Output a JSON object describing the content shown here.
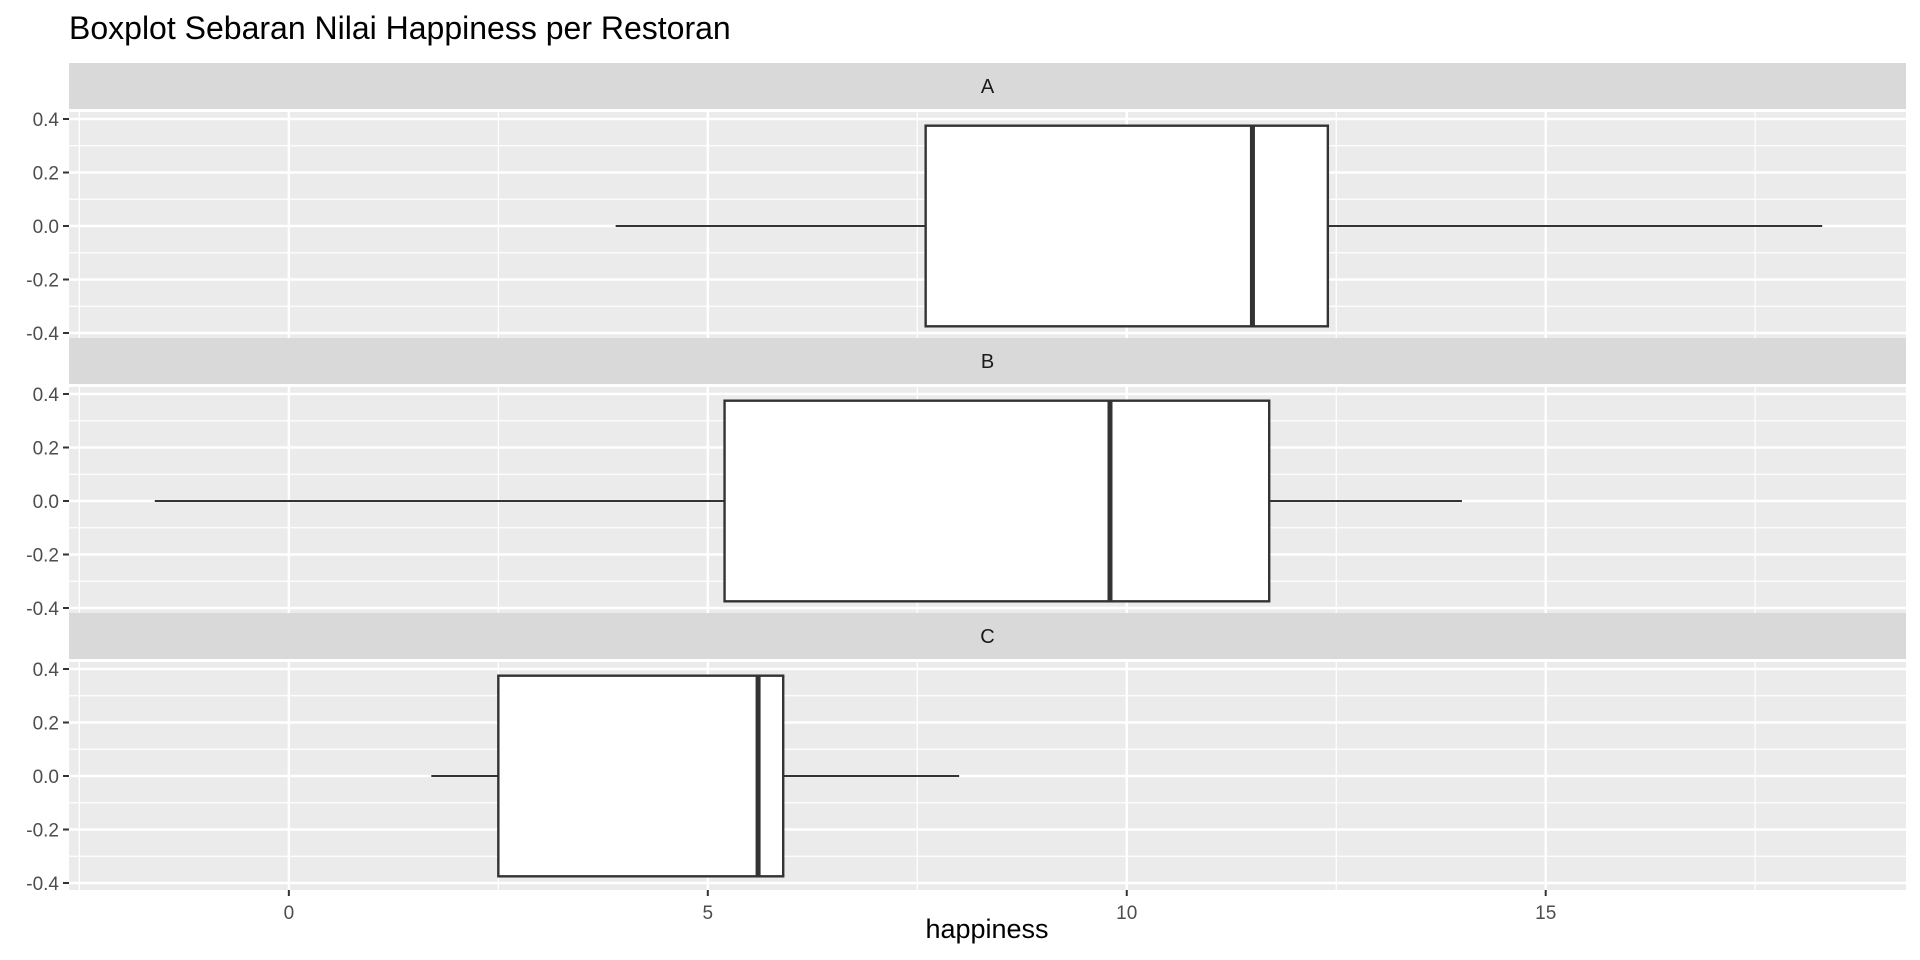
{
  "chart_data": {
    "type": "boxplot",
    "title": "Boxplot Sebaran Nilai Happiness per Restoran",
    "xlabel": "happiness",
    "ylabel": "",
    "xlim": [
      -2.6,
      19.3
    ],
    "ylim": [
      -0.4,
      0.4
    ],
    "x_ticks": [
      0,
      5,
      10,
      15
    ],
    "x_tick_labels": [
      "0",
      "5",
      "10",
      "15"
    ],
    "x_minor_ticks": [
      -2.5,
      2.5,
      7.5,
      12.5,
      17.5
    ],
    "y_ticks": [
      0.4,
      0.2,
      0.0,
      -0.2,
      -0.4
    ],
    "y_tick_labels": [
      "0.4",
      "0.2",
      "0.0",
      "-0.2",
      "-0.4"
    ],
    "grid": true,
    "legend": "none",
    "colors": {
      "panel_background": "#ebebeb",
      "strip_background": "#d9d9d9",
      "grid": "#ffffff",
      "box_fill": "#ffffff",
      "box_line": "#333333"
    },
    "facets": [
      {
        "label": "A",
        "whisker_low": 3.9,
        "q1": 7.6,
        "median": 11.5,
        "q3": 12.4,
        "whisker_high": 18.3
      },
      {
        "label": "B",
        "whisker_low": -1.6,
        "q1": 5.2,
        "median": 9.8,
        "q3": 11.7,
        "whisker_high": 14.0
      },
      {
        "label": "C",
        "whisker_low": 1.7,
        "q1": 2.5,
        "median": 5.6,
        "q3": 5.9,
        "whisker_high": 8.0
      }
    ]
  }
}
